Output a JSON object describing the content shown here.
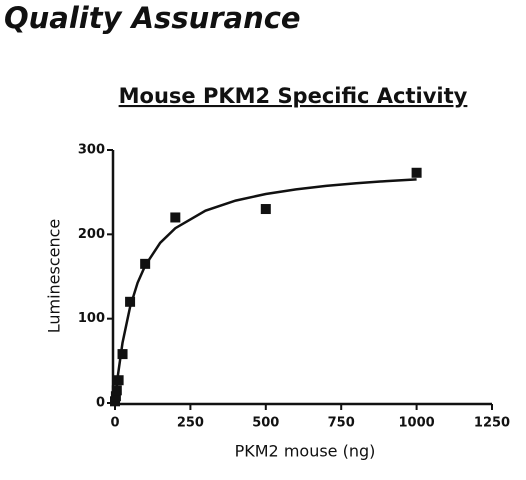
{
  "header": {
    "title": "Quality Assurance"
  },
  "chart_data": {
    "type": "scatter",
    "title": "Mouse PKM2 Specific Activity",
    "x_label": "PKM2 mouse (ng)",
    "y_label": "Luminescence",
    "x": [
      0,
      3,
      6,
      12,
      25,
      50,
      100,
      200,
      500,
      1000
    ],
    "values": [
      2,
      8,
      15,
      27,
      58,
      120,
      165,
      220,
      230,
      273
    ],
    "color": "#111111",
    "fit": {
      "x": [
        0,
        10,
        25,
        50,
        75,
        100,
        150,
        200,
        300,
        400,
        500,
        600,
        700,
        800,
        900,
        1000
      ],
      "values": [
        0,
        33.5,
        71.3,
        114,
        142.5,
        162.9,
        190,
        207.3,
        228,
        240,
        247.8,
        253.3,
        257.4,
        260.6,
        263.1,
        265.1
      ]
    },
    "xlim": [
      0,
      1250
    ],
    "xticks": [
      0,
      250,
      500,
      750,
      1000,
      1250
    ],
    "ylim": [
      0,
      300
    ],
    "yticks": [
      0,
      100,
      200,
      300
    ],
    "grid": false
  }
}
